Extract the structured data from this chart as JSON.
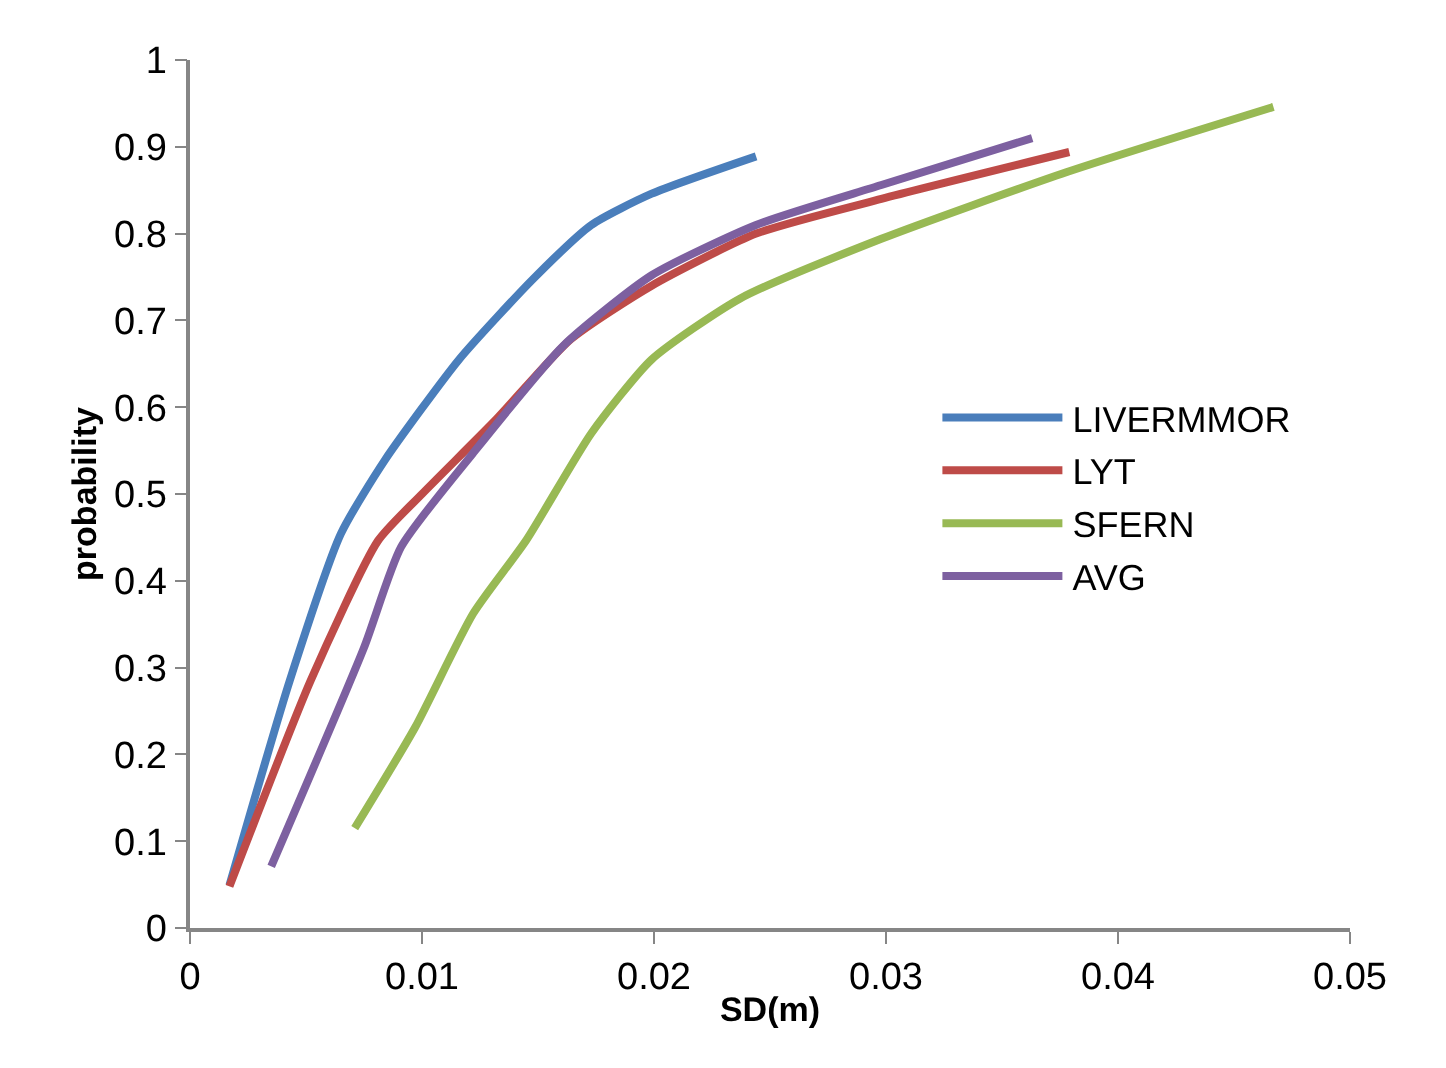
{
  "chart_data": {
    "type": "line",
    "xlabel": "SD(m)",
    "ylabel": "probability",
    "xlim": [
      0,
      0.05
    ],
    "xticks": [
      0,
      0.01,
      0.02,
      0.03,
      0.04,
      0.05
    ],
    "ylim": [
      0,
      1
    ],
    "yticks": [
      0,
      0.1,
      0.2,
      0.3,
      0.4,
      0.5,
      0.6,
      0.7,
      0.8,
      0.9,
      1
    ],
    "legend": "right",
    "marker": "none",
    "line_style": "solid",
    "series": [
      {
        "name": "LIVERMMOR",
        "color": "#4a7ebb",
        "x": [
          0.0017,
          0.0043,
          0.0065,
          0.0084,
          0.0116,
          0.0148,
          0.0173,
          0.0199,
          0.0244
        ],
        "values": [
          0.049,
          0.285,
          0.454,
          0.539,
          0.655,
          0.748,
          0.81,
          0.846,
          0.889
        ]
      },
      {
        "name": "LYT",
        "color": "#be4b48",
        "x": [
          0.0017,
          0.0052,
          0.0081,
          0.01,
          0.0132,
          0.0164,
          0.0199,
          0.0244,
          0.0298,
          0.0379
        ],
        "values": [
          0.048,
          0.285,
          0.446,
          0.5,
          0.586,
          0.678,
          0.74,
          0.8,
          0.84,
          0.894
        ]
      },
      {
        "name": "SFERN",
        "color": "#98b954",
        "x": [
          0.0071,
          0.0097,
          0.0122,
          0.0145,
          0.0173,
          0.0199,
          0.0237,
          0.0298,
          0.0378,
          0.0467
        ],
        "values": [
          0.115,
          0.231,
          0.362,
          0.447,
          0.57,
          0.655,
          0.725,
          0.794,
          0.871,
          0.946
        ]
      },
      {
        "name": "AVG",
        "color": "#7d60a0",
        "x": [
          0.0035,
          0.0075,
          0.0091,
          0.0122,
          0.0161,
          0.0199,
          0.0244,
          0.0298,
          0.0363
        ],
        "values": [
          0.071,
          0.323,
          0.439,
          0.547,
          0.671,
          0.752,
          0.81,
          0.856,
          0.91
        ]
      }
    ]
  }
}
